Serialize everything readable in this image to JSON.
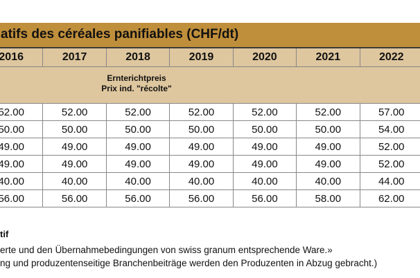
{
  "title": "atifs des céréales panifiables (CHF/dt)",
  "table": {
    "years": [
      "2016",
      "2017",
      "2018",
      "2019",
      "2020",
      "2021",
      "2022"
    ],
    "subheader": {
      "line1": "Ernterichtpreis",
      "line2": "Prix ind. \"récolte\""
    },
    "rows": [
      {
        "values": [
          "52.00",
          "52.00",
          "52.00",
          "52.00",
          "52.00",
          "52.00",
          "57.00"
        ]
      },
      {
        "values": [
          "50.00",
          "50.00",
          "50.00",
          "50.00",
          "50.00",
          "50.00",
          "54.00"
        ]
      },
      {
        "values": [
          "49.00",
          "49.00",
          "49.00",
          "49.00",
          "49.00",
          "49.00",
          "52.00"
        ]
      },
      {
        "values": [
          "49.00",
          "49.00",
          "49.00",
          "49.00",
          "49.00",
          "49.00",
          "52.00"
        ]
      },
      {
        "values": [
          "40.00",
          "40.00",
          "40.00",
          "40.00",
          "40.00",
          "40.00",
          "44.00"
        ]
      },
      {
        "values": [
          "56.00",
          "56.00",
          "56.00",
          "56.00",
          "56.00",
          "58.00",
          "62.00"
        ]
      }
    ]
  },
  "footer": {
    "label": "tif",
    "line1": "erte und den Übernahmebedingungen von swiss granum entsprechende Ware.»",
    "line2": "ng und produzentenseitige Branchenbeiträge werden den Produzenten in Abzug gebracht.)"
  },
  "colors": {
    "title_bg": "#C08F3B",
    "header_bg": "#DEC69E",
    "border": "#878787",
    "text": "#111111"
  }
}
